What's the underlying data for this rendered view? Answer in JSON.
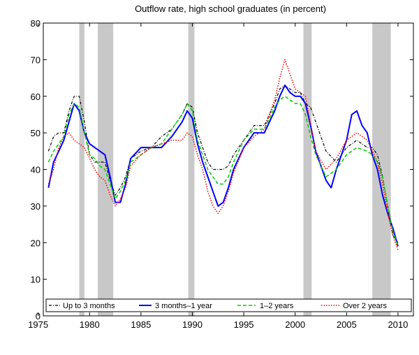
{
  "chart_data": {
    "type": "line",
    "title": "Outflow rate, high school graduates (in percent)",
    "xlabel": "",
    "ylabel": "",
    "xlim": [
      1975.5,
      2011.5
    ],
    "ylim": [
      0,
      80
    ],
    "x_ticks": [
      1975,
      1980,
      1985,
      1990,
      1995,
      2000,
      2005,
      2010
    ],
    "y_ticks": [
      0,
      10,
      20,
      30,
      40,
      50,
      60,
      70,
      80
    ],
    "grid": false,
    "legend_position": "bottom",
    "recession_shading": [
      {
        "start": 1979.0,
        "end": 1979.5
      },
      {
        "start": 1980.8,
        "end": 1982.3
      },
      {
        "start": 1989.6,
        "end": 1990.2
      },
      {
        "start": 2000.8,
        "end": 2001.6
      },
      {
        "start": 2007.5,
        "end": 2009.3
      }
    ],
    "series": [
      {
        "name": "Up to 3 months",
        "color": "#000000",
        "style": "dashdot",
        "x": [
          1976.0,
          1976.5,
          1977.0,
          1977.5,
          1978.0,
          1978.5,
          1979.0,
          1979.5,
          1980.0,
          1980.5,
          1981.0,
          1981.5,
          1982.0,
          1982.5,
          1983.0,
          1983.5,
          1984.0,
          1985.0,
          1986.0,
          1987.0,
          1988.0,
          1989.0,
          1989.5,
          1990.0,
          1990.5,
          1991.0,
          1991.5,
          1992.0,
          1992.5,
          1993.0,
          1993.5,
          1994.0,
          1995.0,
          1996.0,
          1997.0,
          1998.0,
          1998.5,
          1999.0,
          1999.5,
          2000.0,
          2000.5,
          2001.0,
          2001.5,
          2002.0,
          2003.0,
          2004.0,
          2005.0,
          2006.0,
          2007.0,
          2007.5,
          2008.0,
          2008.5,
          2009.0,
          2009.5,
          2010.0
        ],
        "values": [
          45,
          49,
          50,
          50,
          56,
          60,
          60,
          53,
          44,
          42,
          42,
          42,
          37,
          33,
          35,
          38,
          43,
          45,
          46,
          49,
          51,
          55,
          58,
          57,
          50,
          46,
          42,
          40,
          40,
          40,
          41,
          44,
          48,
          52,
          52,
          58,
          62,
          63,
          62,
          61,
          61,
          58,
          57,
          53,
          45,
          42,
          46,
          48,
          46,
          46,
          44,
          38,
          30,
          22,
          20
        ]
      },
      {
        "name": "3 months–1 year",
        "color": "#0000ff",
        "style": "solid",
        "x": [
          1976.0,
          1976.5,
          1977.0,
          1977.5,
          1978.0,
          1978.5,
          1979.0,
          1979.5,
          1980.0,
          1980.5,
          1981.0,
          1981.5,
          1982.0,
          1982.5,
          1983.0,
          1983.5,
          1984.0,
          1985.0,
          1986.0,
          1987.0,
          1988.0,
          1989.0,
          1989.5,
          1990.0,
          1990.5,
          1991.0,
          1991.5,
          1992.0,
          1992.5,
          1993.0,
          1993.5,
          1994.0,
          1995.0,
          1996.0,
          1997.0,
          1998.0,
          1998.5,
          1999.0,
          1999.5,
          2000.0,
          2000.5,
          2001.0,
          2001.5,
          2002.0,
          2003.0,
          2003.5,
          2004.0,
          2005.0,
          2005.5,
          2006.0,
          2006.5,
          2007.0,
          2007.5,
          2008.0,
          2008.5,
          2009.0,
          2009.5,
          2010.0
        ],
        "values": [
          35,
          42,
          45,
          48,
          53,
          58,
          56,
          50,
          47,
          46,
          45,
          44,
          38,
          31,
          31,
          36,
          43,
          46,
          46,
          46,
          49,
          53,
          56,
          54,
          47,
          42,
          38,
          34,
          30,
          31,
          35,
          40,
          46,
          50,
          50,
          56,
          60,
          63,
          61,
          60,
          60,
          58,
          52,
          45,
          37,
          35,
          40,
          48,
          55,
          56,
          52,
          50,
          44,
          40,
          33,
          28,
          24,
          19
        ]
      },
      {
        "name": "1–2 years",
        "color": "#00cc00",
        "style": "dashed",
        "x": [
          1976.0,
          1976.5,
          1977.0,
          1977.5,
          1978.0,
          1978.5,
          1979.0,
          1979.5,
          1980.0,
          1980.5,
          1981.0,
          1981.5,
          1982.0,
          1982.5,
          1983.0,
          1983.5,
          1984.0,
          1985.0,
          1986.0,
          1987.0,
          1988.0,
          1989.0,
          1989.5,
          1990.0,
          1990.5,
          1991.0,
          1991.5,
          1992.0,
          1992.5,
          1993.0,
          1993.5,
          1994.0,
          1995.0,
          1996.0,
          1997.0,
          1998.0,
          1998.5,
          1999.0,
          1999.5,
          2000.0,
          2000.5,
          2001.0,
          2001.5,
          2002.0,
          2003.0,
          2004.0,
          2005.0,
          2006.0,
          2007.0,
          2007.5,
          2008.0,
          2008.5,
          2009.0,
          2009.5,
          2010.0
        ],
        "values": [
          42,
          45,
          47,
          49,
          55,
          58,
          57,
          50,
          44,
          43,
          41,
          40,
          36,
          32,
          34,
          37,
          42,
          44,
          46,
          47,
          51,
          55,
          58,
          56,
          48,
          44,
          40,
          38,
          36,
          36,
          38,
          42,
          48,
          51,
          51,
          57,
          59,
          60,
          59,
          58,
          58,
          55,
          49,
          44,
          38,
          40,
          44,
          46,
          45,
          44,
          42,
          38,
          30,
          23,
          19
        ]
      },
      {
        "name": "Over 2 years",
        "color": "#ff0000",
        "style": "dotted",
        "x": [
          1976.0,
          1976.5,
          1977.0,
          1977.5,
          1978.0,
          1978.5,
          1979.0,
          1979.5,
          1980.0,
          1980.5,
          1981.0,
          1981.5,
          1982.0,
          1982.5,
          1983.0,
          1983.5,
          1984.0,
          1985.0,
          1986.0,
          1987.0,
          1988.0,
          1989.0,
          1989.5,
          1990.0,
          1990.5,
          1991.0,
          1991.5,
          1992.0,
          1992.5,
          1993.0,
          1993.5,
          1994.0,
          1995.0,
          1996.0,
          1997.0,
          1998.0,
          1998.5,
          1999.0,
          1999.5,
          2000.0,
          2000.5,
          2001.0,
          2001.5,
          2002.0,
          2003.0,
          2004.0,
          2005.0,
          2006.0,
          2007.0,
          2007.5,
          2008.0,
          2008.5,
          2009.0,
          2009.5,
          2010.0
        ],
        "values": [
          36,
          40,
          46,
          49,
          50,
          48,
          47,
          46,
          43,
          40,
          38,
          37,
          33,
          30,
          32,
          35,
          41,
          44,
          46,
          47,
          48,
          48,
          50,
          49,
          44,
          40,
          34,
          30,
          28,
          30,
          34,
          39,
          46,
          49,
          51,
          59,
          65,
          70,
          66,
          62,
          61,
          60,
          52,
          45,
          40,
          43,
          48,
          50,
          48,
          45,
          42,
          36,
          28,
          22,
          18
        ]
      }
    ]
  }
}
